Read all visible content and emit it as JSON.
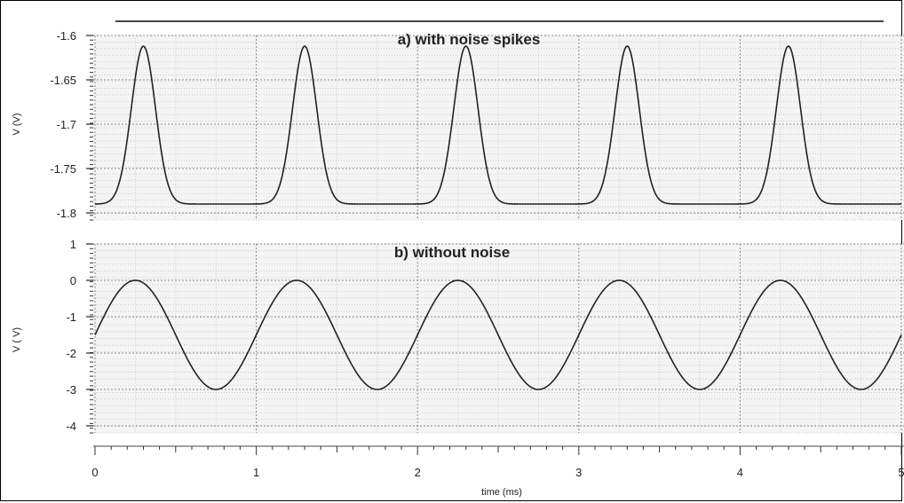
{
  "chart_data": [
    {
      "type": "line",
      "title": "a) with noise spikes",
      "xlabel": "",
      "ylabel": "V (V)",
      "xlim": [
        0,
        5
      ],
      "ylim": [
        -1.8,
        -1.6
      ],
      "y_ticks": [
        -1.6,
        -1.65,
        -1.7,
        -1.75,
        -1.8
      ],
      "y_tick_labels": [
        "-1.6",
        "-1.65",
        "-1.7",
        "-1.75",
        "-1.8"
      ],
      "grid": true,
      "series": [
        {
          "description": "periodic narrow positive pulses, period 1 ms, peaks at 0.3, 1.3, 2.3, 3.3, 4.3 ms",
          "baseline": -1.79,
          "peak": -1.612,
          "period": 1.0,
          "peak_times": [
            0.3,
            1.3,
            2.3,
            3.3,
            4.3
          ],
          "x": [
            0,
            0.1,
            0.2,
            0.3,
            0.4,
            0.5,
            0.6,
            0.7,
            0.8,
            1.0,
            1.1,
            1.2,
            1.3,
            1.4,
            1.5,
            1.6,
            1.7,
            2.0,
            2.1,
            2.2,
            2.3,
            2.4,
            2.5,
            2.6,
            2.7,
            3.0,
            3.1,
            3.2,
            3.3,
            3.4,
            3.5,
            3.6,
            3.7,
            4.0,
            4.1,
            4.2,
            4.3,
            4.4,
            4.5,
            4.6,
            4.7,
            5.0
          ],
          "y": [
            -1.783,
            -1.76,
            -1.68,
            -1.612,
            -1.68,
            -1.77,
            -1.787,
            -1.79,
            -1.79,
            -1.783,
            -1.76,
            -1.68,
            -1.612,
            -1.68,
            -1.77,
            -1.787,
            -1.79,
            -1.783,
            -1.76,
            -1.68,
            -1.612,
            -1.68,
            -1.77,
            -1.787,
            -1.79,
            -1.783,
            -1.76,
            -1.68,
            -1.612,
            -1.68,
            -1.77,
            -1.787,
            -1.79,
            -1.783,
            -1.76,
            -1.68,
            -1.612,
            -1.68,
            -1.77,
            -1.787,
            -1.79,
            -1.783
          ]
        }
      ]
    },
    {
      "type": "line",
      "title": "b) without noise",
      "xlabel": "time (ms)",
      "ylabel": "V ( V)",
      "xlim": [
        0,
        5
      ],
      "ylim": [
        -4,
        1
      ],
      "y_ticks": [
        1,
        0,
        -1,
        -2,
        -3,
        -4
      ],
      "y_tick_labels": [
        "1",
        "0",
        "-1",
        "-2",
        "-3",
        "-4"
      ],
      "x_ticks": [
        0,
        1,
        2,
        3,
        4,
        5
      ],
      "x_tick_labels": [
        "0",
        "1",
        "2",
        "3",
        "4",
        "5"
      ],
      "grid": true,
      "series": [
        {
          "description": "sinusoid, amplitude 1.5 V, offset -1.5 V, period 1 ms, maxima 0 V at 0.25+k ms, minima -3 V at 0.75+k ms",
          "offset": -1.5,
          "amplitude": 1.5,
          "period": 1.0,
          "phase_of_max": 0.25,
          "x": [
            0,
            0.25,
            0.5,
            0.75,
            1.0,
            1.25,
            1.5,
            1.75,
            2.0,
            2.25,
            2.5,
            2.75,
            3.0,
            3.25,
            3.5,
            3.75,
            4.0,
            4.25,
            4.5,
            4.75,
            5.0
          ],
          "y": [
            -1.5,
            0,
            -1.5,
            -3,
            -1.5,
            0,
            -1.5,
            -3,
            -1.5,
            0,
            -1.5,
            -3,
            -1.5,
            0,
            -1.5,
            -3,
            -1.5,
            0,
            -1.5,
            -3,
            -1.5
          ]
        }
      ]
    }
  ]
}
